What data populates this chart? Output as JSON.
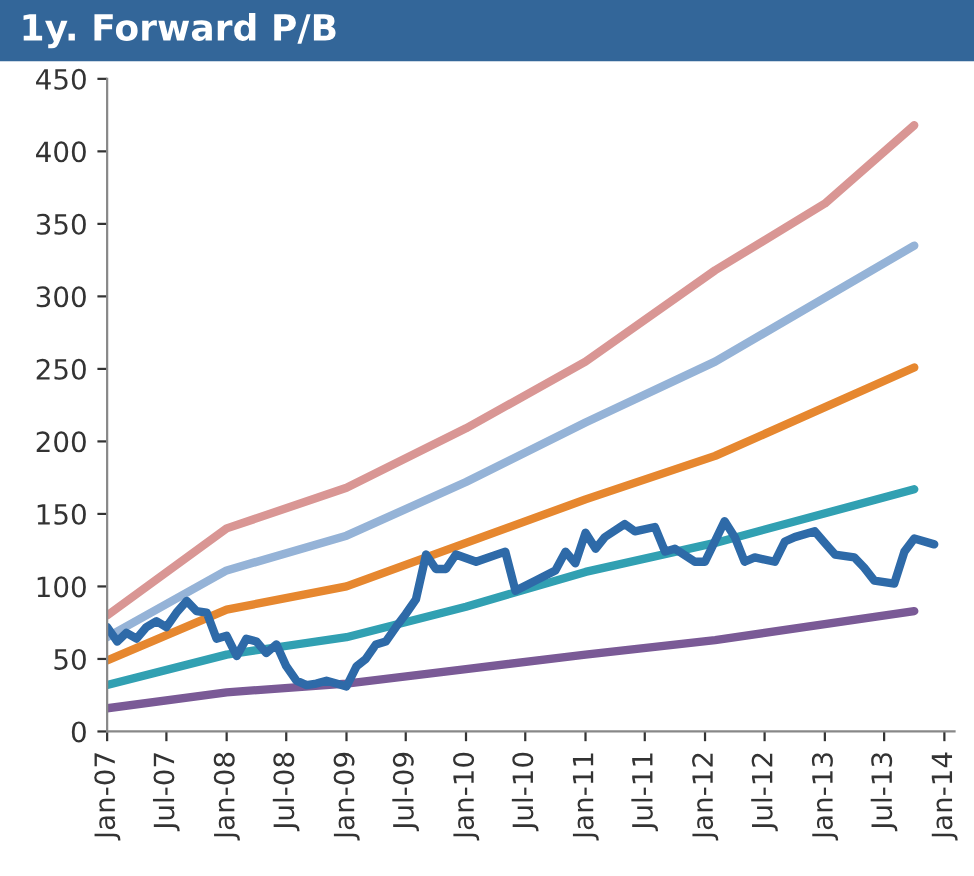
{
  "chart_data": {
    "type": "line",
    "title": "1y. Forward P/B",
    "ylim": [
      0,
      450
    ],
    "yticks": [
      0,
      50,
      100,
      150,
      200,
      250,
      300,
      350,
      400,
      450
    ],
    "xlim": [
      "2007-01",
      "2014-02"
    ],
    "xticks": [
      {
        "value": "2007-01",
        "label": "Jan-07"
      },
      {
        "value": "2007-07",
        "label": "Jul-07"
      },
      {
        "value": "2008-01",
        "label": "Jan-08"
      },
      {
        "value": "2008-07",
        "label": "Jul-08"
      },
      {
        "value": "2009-01",
        "label": "Jan-09"
      },
      {
        "value": "2009-07",
        "label": "Jul-09"
      },
      {
        "value": "2010-01",
        "label": "Jan-10"
      },
      {
        "value": "2010-07",
        "label": "Jul-10"
      },
      {
        "value": "2011-01",
        "label": "Jan-11"
      },
      {
        "value": "2011-07",
        "label": "Jul-11"
      },
      {
        "value": "2012-01",
        "label": "Jan-12"
      },
      {
        "value": "2012-07",
        "label": "Jul-12"
      },
      {
        "value": "2013-01",
        "label": "Jan-13"
      },
      {
        "value": "2013-07",
        "label": "Jul-13"
      },
      {
        "value": "2014-01",
        "label": "Jan-14"
      }
    ],
    "grid": false,
    "legend": false,
    "marker": "none",
    "line_style": "solid",
    "series": [
      {
        "color": "#d99694",
        "x": [
          "2007-01",
          "2008-01",
          "2009-01",
          "2010-01",
          "2011-01",
          "2012-02",
          "2013-01",
          "2013-10"
        ],
        "values": [
          80,
          140,
          168,
          209,
          255,
          318,
          364,
          418
        ]
      },
      {
        "color": "#95b3d7",
        "x": [
          "2007-01",
          "2008-01",
          "2009-01",
          "2010-01",
          "2011-01",
          "2012-02",
          "2013-10"
        ],
        "values": [
          65,
          111,
          135,
          172,
          213,
          255,
          335
        ]
      },
      {
        "color": "#e6872f",
        "x": [
          "2007-01",
          "2008-01",
          "2009-01",
          "2010-01",
          "2011-01",
          "2012-02",
          "2013-10"
        ],
        "values": [
          49,
          84,
          100,
          130,
          160,
          190,
          251
        ]
      },
      {
        "color": "#31a0b2",
        "x": [
          "2007-01",
          "2008-01",
          "2009-01",
          "2010-01",
          "2011-01",
          "2012-02",
          "2013-10"
        ],
        "values": [
          32,
          53,
          65,
          86,
          110,
          130,
          167
        ]
      },
      {
        "color": "#7a5a96",
        "x": [
          "2007-01",
          "2008-01",
          "2009-01",
          "2010-01",
          "2011-01",
          "2012-02",
          "2013-10"
        ],
        "values": [
          16,
          27,
          33,
          43,
          53,
          63,
          83
        ]
      },
      {
        "color": "#2e6aa8",
        "x": [
          "2007-01",
          "2007-02",
          "2007-03",
          "2007-04",
          "2007-05",
          "2007-06",
          "2007-07",
          "2007-08",
          "2007-09",
          "2007-10",
          "2007-11",
          "2007-12",
          "2008-01",
          "2008-02",
          "2008-03",
          "2008-04",
          "2008-05",
          "2008-06",
          "2008-07",
          "2008-08",
          "2008-09",
          "2008-10",
          "2008-11",
          "2008-12",
          "2009-01",
          "2009-02",
          "2009-03",
          "2009-04",
          "2009-05",
          "2009-06",
          "2009-07",
          "2009-08",
          "2009-09",
          "2009-10",
          "2009-11",
          "2009-12",
          "2010-02",
          "2010-05",
          "2010-06",
          "2010-08",
          "2010-10",
          "2010-11",
          "2010-12",
          "2011-01",
          "2011-02",
          "2011-03",
          "2011-05",
          "2011-06",
          "2011-08",
          "2011-09",
          "2011-10",
          "2011-12",
          "2012-01",
          "2012-03",
          "2012-04",
          "2012-05",
          "2012-06",
          "2012-08",
          "2012-09",
          "2012-10",
          "2012-12",
          "2013-01",
          "2013-02",
          "2013-04",
          "2013-05",
          "2013-06",
          "2013-08",
          "2013-09",
          "2013-10",
          "2013-12"
        ],
        "values": [
          72,
          62,
          68,
          64,
          72,
          76,
          72,
          82,
          90,
          83,
          82,
          64,
          66,
          52,
          64,
          62,
          54,
          60,
          45,
          35,
          32,
          33,
          35,
          33,
          31,
          45,
          50,
          60,
          62,
          72,
          81,
          91,
          122,
          112,
          112,
          122,
          117,
          124,
          97,
          104,
          111,
          124,
          116,
          137,
          126,
          134,
          143,
          138,
          141,
          124,
          126,
          117,
          117,
          145,
          134,
          117,
          120,
          117,
          131,
          134,
          138,
          130,
          122,
          120,
          113,
          104,
          102,
          124,
          133,
          129
        ]
      }
    ]
  }
}
